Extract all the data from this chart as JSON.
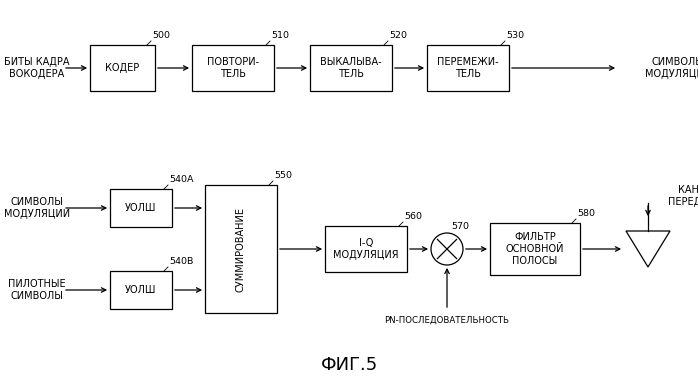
{
  "bg_color": "#ffffff",
  "fig_caption": "ФИГ.5",
  "top_input": "БИТЫ КАДРА\nВОКОДЕРА",
  "top_output": "СИМВОЛЫ\nМОДУЛЯЦИИ",
  "top_boxes": [
    {
      "label": "КОДЕР",
      "num": "500"
    },
    {
      "label": "ПОВТОРИ-\nТЕЛЬ",
      "num": "510"
    },
    {
      "label": "ВЫКАЛЫВА-\nТЕЛЬ",
      "num": "520"
    },
    {
      "label": "ПЕРЕМЕЖИ-\nТЕЛЬ",
      "num": "530"
    }
  ],
  "bottom_input_a": "СИМВОЛЫ\nМОДУЛЯЦИИ",
  "bottom_input_b": "ПИЛОТНЫЕ\nСИМВОЛЫ",
  "uolsh_a_num": "540A",
  "uolsh_b_num": "540B",
  "uolsh_label": "УОЛШ",
  "sum_label": "СУММИРОВАНИЕ",
  "sum_num": "550",
  "iq_label": "I-Q\nМОДУЛЯЦИЯ",
  "iq_num": "560",
  "mult_num": "570",
  "filter_label": "ФИЛЬТР\nОСНОВНОЙ\nПОЛОСЫ",
  "filter_num": "580",
  "output_label": "КАНАЛ\nПЕРЕДАЧИ",
  "pn_label": "PN-ПОСЛЕДОВАТЕЛЬНОСТЬ"
}
